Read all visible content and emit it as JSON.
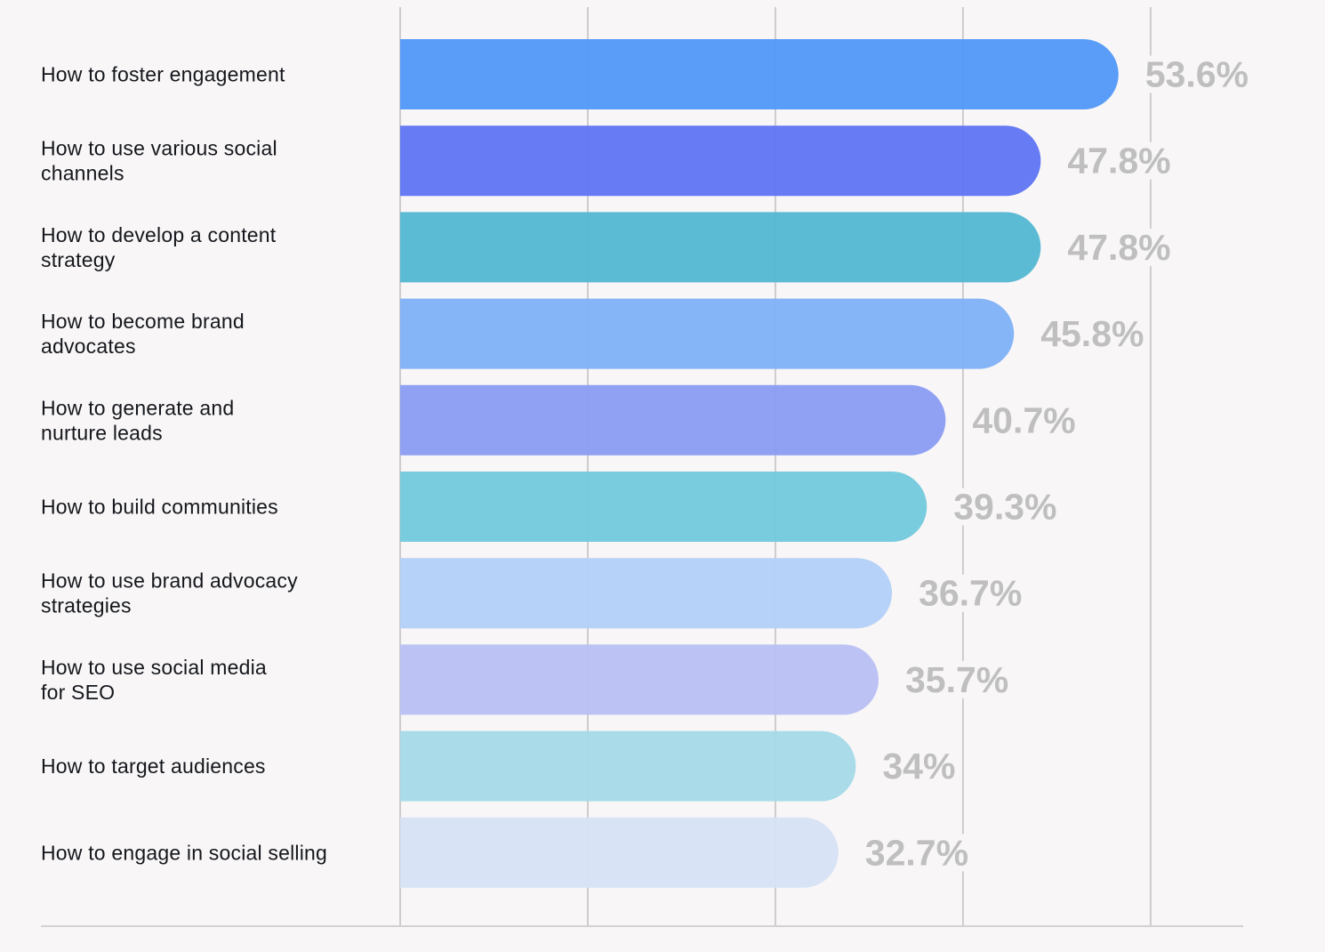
{
  "chart_data": {
    "type": "bar",
    "orientation": "horizontal",
    "categories": [
      "How to foster engagement",
      "How to use various social channels",
      "How to develop a content strategy",
      "How to become brand advocates",
      "How to generate and nurture leads",
      "How to build communities",
      "How to use brand advocacy strategies",
      "How to use social media for SEO",
      "How to target audiences",
      "How to engage in social selling"
    ],
    "category_lines": [
      [
        "How to foster engagement"
      ],
      [
        "How to use various social",
        "channels"
      ],
      [
        "How to develop a content",
        "strategy"
      ],
      [
        "How to become brand",
        "advocates"
      ],
      [
        "How to generate and",
        "nurture leads"
      ],
      [
        "How to build communities"
      ],
      [
        "How to use brand advocacy",
        "strategies"
      ],
      [
        "How to use social media",
        "for SEO"
      ],
      [
        "How to target audiences"
      ],
      [
        "How to engage in social selling"
      ]
    ],
    "values": [
      53.6,
      47.8,
      47.8,
      45.8,
      40.7,
      39.3,
      36.7,
      35.7,
      34,
      32.7
    ],
    "value_labels": [
      "53.6%",
      "47.8%",
      "47.8%",
      "45.8%",
      "40.7%",
      "39.3%",
      "36.7%",
      "35.7%",
      "34%",
      "32.7%"
    ],
    "colors": [
      "#5399f8",
      "#6076f4",
      "#55b8d2",
      "#80b1f7",
      "#8b9df3",
      "#74c9dd",
      "#b4d0f8",
      "#b9c1f4",
      "#a6dbe7",
      "#d6e2f6"
    ],
    "xlim": [
      0,
      70
    ],
    "gridlines": [
      0,
      14,
      28,
      42,
      56
    ],
    "grid": true,
    "title": "",
    "xlabel": "",
    "ylabel": ""
  }
}
